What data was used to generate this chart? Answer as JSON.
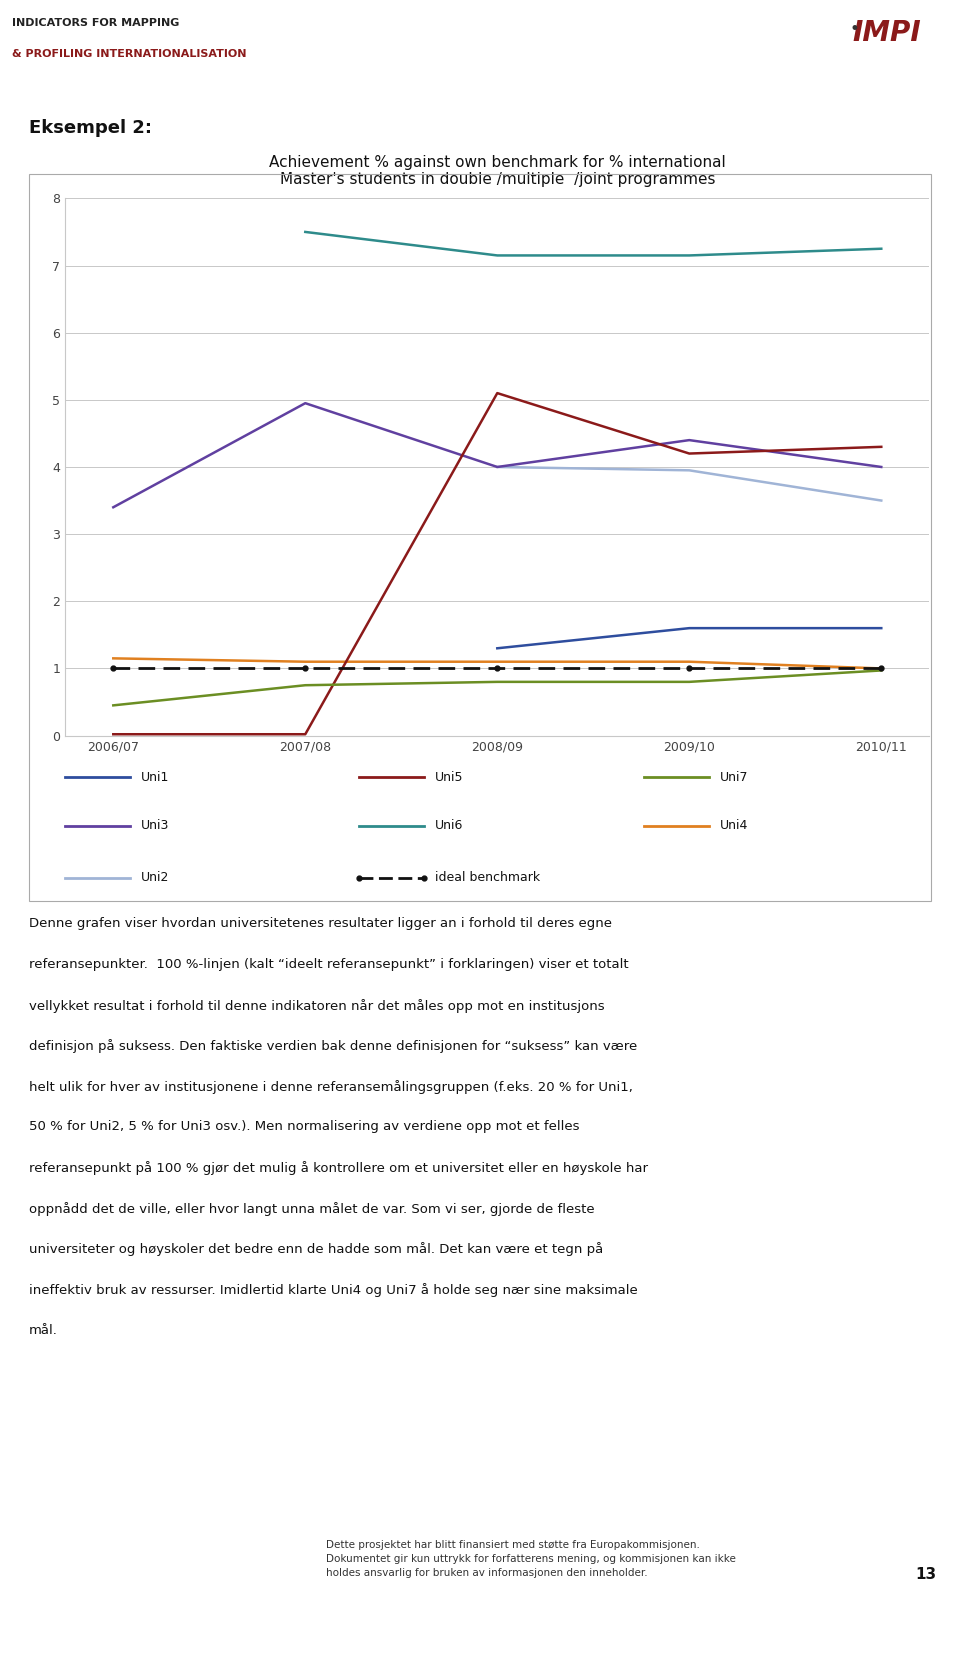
{
  "title_line1": "Achievement % against own benchmark for % international",
  "title_line2": "Master's students in double /multiple  /joint programmes",
  "x_labels": [
    "2006/07",
    "2007/08",
    "2008/09",
    "2009/10",
    "2010/11"
  ],
  "x_positions": [
    0,
    1,
    2,
    3,
    4
  ],
  "ylim": [
    0,
    8
  ],
  "yticks": [
    0,
    1,
    2,
    3,
    4,
    5,
    6,
    7,
    8
  ],
  "series": {
    "Uni1": {
      "color": "#2e4d9e",
      "values": [
        null,
        null,
        1.3,
        1.6,
        1.6
      ],
      "linewidth": 1.8,
      "dashed": false
    },
    "Uni2": {
      "color": "#a0b4d6",
      "values": [
        null,
        null,
        4.0,
        3.95,
        3.5
      ],
      "linewidth": 1.8,
      "dashed": false
    },
    "Uni3": {
      "color": "#6040a0",
      "values": [
        3.4,
        4.95,
        4.0,
        4.4,
        4.0
      ],
      "linewidth": 1.8,
      "dashed": false
    },
    "Uni4": {
      "color": "#e08020",
      "values": [
        1.15,
        1.1,
        null,
        1.1,
        1.0
      ],
      "linewidth": 1.8,
      "dashed": false
    },
    "Uni5": {
      "color": "#8b1a1a",
      "values": [
        0.02,
        0.02,
        5.1,
        4.2,
        4.3
      ],
      "linewidth": 1.8,
      "dashed": false
    },
    "Uni6": {
      "color": "#2e8b8b",
      "values": [
        null,
        7.5,
        7.15,
        7.15,
        7.25
      ],
      "linewidth": 1.8,
      "dashed": false
    },
    "Uni7": {
      "color": "#6b8e23",
      "values": [
        0.45,
        0.75,
        0.8,
        0.8,
        0.97
      ],
      "linewidth": 1.8,
      "dashed": false
    },
    "ideal benchmark": {
      "color": "#111111",
      "values": [
        1.0,
        1.0,
        1.0,
        1.0,
        1.0
      ],
      "linewidth": 2.0,
      "dashed": true
    }
  },
  "legend_entries": [
    {
      "label": "Uni1",
      "color": "#2e4d9e",
      "dashed": false
    },
    {
      "label": "Uni5",
      "color": "#8b1a1a",
      "dashed": false
    },
    {
      "label": "Uni7",
      "color": "#6b8e23",
      "dashed": false
    },
    {
      "label": "Uni3",
      "color": "#6040a0",
      "dashed": false
    },
    {
      "label": "Uni6",
      "color": "#2e8b8b",
      "dashed": false
    },
    {
      "label": "Uni4",
      "color": "#e08020",
      "dashed": false
    },
    {
      "label": "Uni2",
      "color": "#a0b4d6",
      "dashed": false
    },
    {
      "label": "ideal benchmark",
      "color": "#111111",
      "dashed": true
    }
  ],
  "eksempel_label": "Eksempel 2:",
  "body_text": "Denne grafen viser hvordan universitetenes resultater ligger an i forhold til deres egne referansepunkter.  100 %-linjen (kalt \"ideelt referansepunkt\" i forklaringen) viser et totalt vellykket resultat i forhold til denne indikatoren når det måles opp mot en institusjons definisjon på suksess. Den faktiske verdien bak denne definisjonen for \"suksess\" kan være helt ulik for hver av institusjonene i denne referansemålingsgruppen (f.eks. 20 % for Uni1, 50 % for Uni2, 5 % for Uni3 osv.). Men normalisering av verdiene opp mot et felles referansepunkt på 100 % gjør det mulig å kontrollere om et universitet eller en høyskole har oppnådd det de ville, eller hvor langt unna målet de var. Som vi ser, gjorde de fleste universiteter og høyskoler det bedre enn de hadde som mål. Det kan være et tegn på ineffektiv bruk av ressurser. Imidlertid klarte Uni4 og Uni7 å holde seg nær sine maksimale mål.",
  "footer_text": "Dette prosjektet har blitt finansiert med støtte fra Europakommisjonen.\nDokumentet gir kun uttrykk for forfatterens mening, og kommisjonen kan ikke\nholdes ansvarlig for bruken av informasjonen den inneholder.",
  "page_number": "13",
  "background_color": "#ffffff",
  "chart_bg": "#ffffff",
  "grid_color": "#c8c8c8",
  "header_bg": "#e0e0e0",
  "title_fontsize": 11,
  "legend_fontsize": 9,
  "axis_fontsize": 9,
  "body_fontsize": 9.5
}
